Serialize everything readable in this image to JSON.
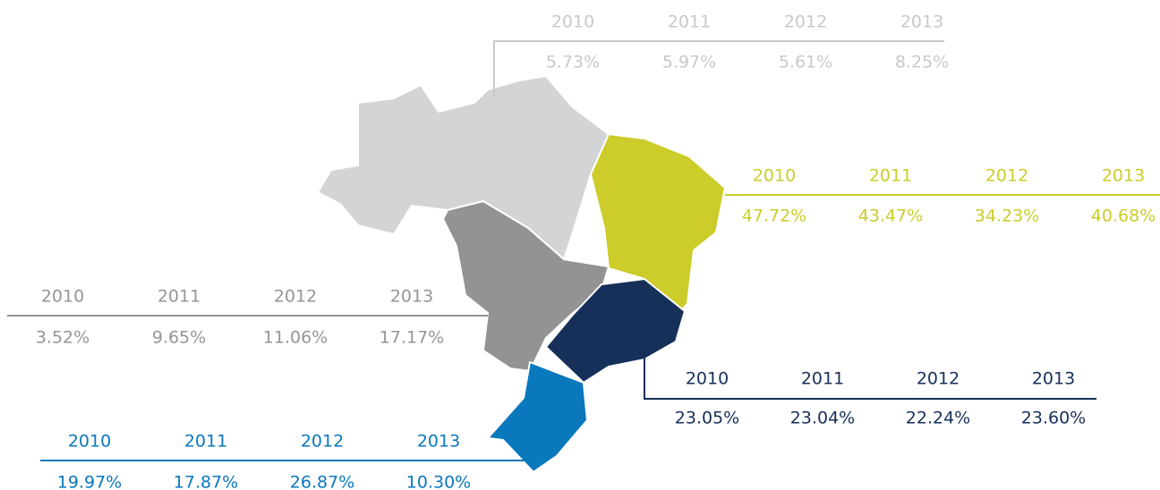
{
  "regions": [
    {
      "color": "#c8c9cb",
      "years": [
        "2010",
        "2011",
        "2012",
        "2013"
      ],
      "values": [
        "5.73%",
        "5.97%",
        "5.61%",
        "8.25%"
      ]
    },
    {
      "color": "#cccc2a",
      "years": [
        "2010",
        "2011",
        "2012",
        "2013"
      ],
      "values": [
        "47.72%",
        "43.47%",
        "34.23%",
        "40.68%"
      ]
    },
    {
      "color": "#959595",
      "years": [
        "2010",
        "2011",
        "2012",
        "2013"
      ],
      "values": [
        "3.52%",
        "9.65%",
        "11.06%",
        "17.17%"
      ]
    },
    {
      "color": "#16305a",
      "years": [
        "2010",
        "2011",
        "2012",
        "2013"
      ],
      "values": [
        "23.05%",
        "23.04%",
        "22.24%",
        "23.60%"
      ]
    },
    {
      "color": "#0a78bd",
      "years": [
        "2010",
        "2011",
        "2012",
        "2013"
      ],
      "values": [
        "19.97%",
        "17.87%",
        "26.87%",
        "10.30%"
      ]
    }
  ]
}
